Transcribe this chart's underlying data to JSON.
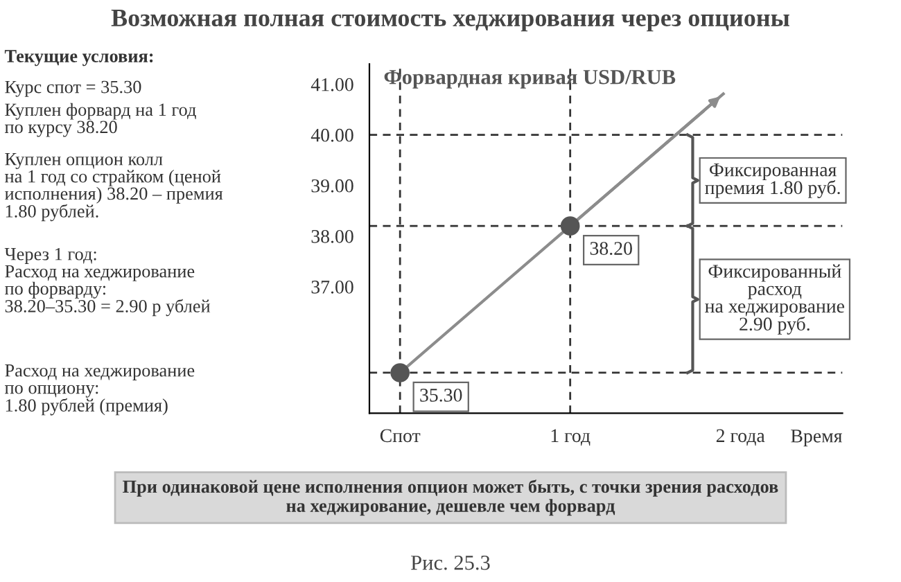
{
  "chart_data": {
    "type": "line",
    "title": "Возможная полная стоимость хеджирования через опционы",
    "subtitle": "Форвардная кривая USD/RUB",
    "xlabel": "Время",
    "series": [
      {
        "color": "#8c8c8c",
        "x": [
          0,
          1,
          1.9
        ],
        "values": [
          35.3,
          38.2,
          40.81
        ],
        "marker": "none"
      },
      {
        "type": "scatter",
        "color": "#555555",
        "x": [
          0,
          1
        ],
        "values": [
          35.3,
          38.2
        ],
        "marker": "circle",
        "value_labels": [
          "35.30",
          "38.20"
        ]
      }
    ],
    "xlim": [
      -0.18,
      2.6
    ],
    "xticks": [
      {
        "value": 0,
        "label": "Спот"
      },
      {
        "value": 1,
        "label": "1 год"
      },
      {
        "value": 2,
        "label": "2 года"
      }
    ],
    "ylim": [
      34.5,
      41.4
    ],
    "yticks": [
      {
        "value": 37,
        "label": "37.00"
      },
      {
        "value": 38,
        "label": "38.00"
      },
      {
        "value": 39,
        "label": "39.00"
      },
      {
        "value": 40,
        "label": "40.00"
      },
      {
        "value": 41,
        "label": "41.00"
      }
    ],
    "ref_lines": [
      {
        "axis": "y",
        "value": 35.3,
        "label": null,
        "color": "#333333",
        "line_style": "dashed"
      },
      {
        "axis": "y",
        "value": 38.2,
        "label": null,
        "color": "#333333",
        "line_style": "dashed"
      },
      {
        "axis": "y",
        "value": 40.0,
        "label": null,
        "color": "#333333",
        "line_style": "dashed"
      },
      {
        "axis": "x",
        "value": 0,
        "label": null,
        "color": "#333333",
        "line_style": "dashed"
      },
      {
        "axis": "x",
        "value": 1,
        "label": null,
        "color": "#333333",
        "line_style": "dashed"
      }
    ],
    "annotations": [
      "Фиксированная\nпремия 1.80 руб.",
      "Фиксированный\nрасход\nна хеджирование\n2.90 руб.",
      "Текущие условия:",
      "Курс спот = 35.30",
      "Куплен форвард на 1 год\nпо курсу 38.20",
      "Куплен опцион колл\nна 1 год со страйком (ценой\nисполнения) 38.20 – премия\n1.80 рублей.",
      "Через 1 год:\nРасход на хеджирование\nпо форварду:\n38.20–35.30 = 2.90 р ублей",
      "Расход на хеджирование\nпо опциону:\n1.80 рублей (премия)",
      "При одинаковой цене исполнения опцион может быть, с точки зрения расходов\nна хеджирование, дешевле чем форвард",
      "Рис. 25.3"
    ],
    "grid": false,
    "legend": false
  }
}
